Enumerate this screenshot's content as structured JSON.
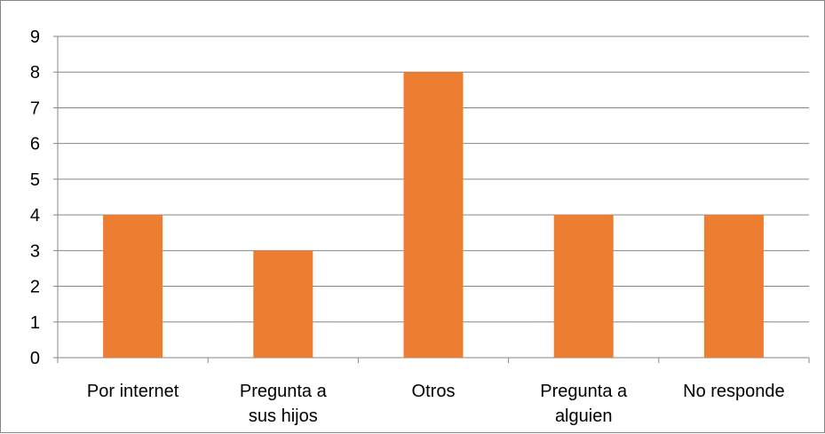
{
  "chart_data": {
    "type": "bar",
    "categories": [
      [
        "Por internet"
      ],
      [
        "Pregunta a",
        "sus hijos"
      ],
      [
        "Otros"
      ],
      [
        "Pregunta a",
        "alguien"
      ],
      [
        "No responde"
      ]
    ],
    "values": [
      4,
      3,
      8,
      4,
      4
    ],
    "title": "",
    "xlabel": "",
    "ylabel": "",
    "ylim": [
      0,
      9
    ],
    "yticks": [
      "0",
      "1",
      "2",
      "3",
      "4",
      "5",
      "6",
      "7",
      "8",
      "9"
    ],
    "grid": true,
    "legend": "none",
    "colors": {
      "bar": "#ED7D31",
      "grid": "#868686",
      "axis": "#868686",
      "frame": "#868686"
    }
  }
}
